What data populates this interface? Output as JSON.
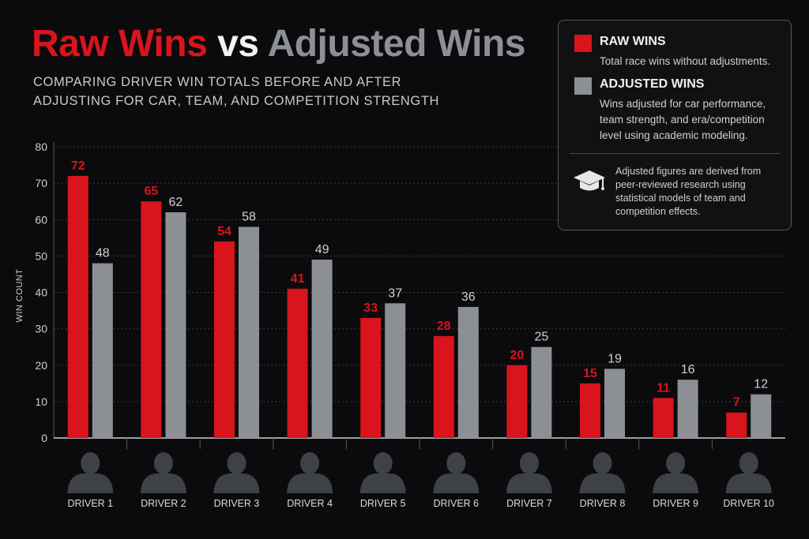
{
  "title": {
    "part1": "Raw Wins",
    "part2": "vs",
    "part3": "Adjusted Wins"
  },
  "subtitle": "COMPARING DRIVER WIN TOTALS BEFORE AND AFTER ADJUSTING FOR CAR, TEAM, AND COMPETITION STRENGTH",
  "legend": {
    "raw_title": "RAW WINS",
    "raw_desc": "Total race wins without adjustments.",
    "adj_title": "ADJUSTED WINS",
    "adj_desc": "Wins adjusted for car performance, team strength, and era/competition level using academic modeling.",
    "note": "Adjusted figures are derived from peer-reviewed research using statistical models of team and competition effects.",
    "note_icon": "graduation-cap-icon"
  },
  "colors": {
    "raw": "#d9141c",
    "adjusted": "#8c9095",
    "background": "#0b0b0d",
    "avatar": "#3e4246"
  },
  "chart_data": {
    "type": "bar",
    "ylabel": "WIN COUNT",
    "xlabel": "",
    "ylim": [
      0,
      80
    ],
    "yticks": [
      0,
      10,
      20,
      30,
      40,
      50,
      60,
      70,
      80
    ],
    "grid": true,
    "categories": [
      "DRIVER 1",
      "DRIVER 2",
      "DRIVER 3",
      "DRIVER 4",
      "DRIVER 5",
      "DRIVER 6",
      "DRIVER 7",
      "DRIVER 8",
      "DRIVER 9",
      "DRIVER 10"
    ],
    "series": [
      {
        "name": "RAW WINS",
        "values": [
          72,
          65,
          54,
          41,
          33,
          28,
          20,
          15,
          11,
          7
        ]
      },
      {
        "name": "ADJUSTED WINS",
        "values": [
          48,
          62,
          58,
          49,
          37,
          36,
          25,
          19,
          16,
          12
        ]
      }
    ],
    "category_icon": "driver-avatar-icon"
  }
}
